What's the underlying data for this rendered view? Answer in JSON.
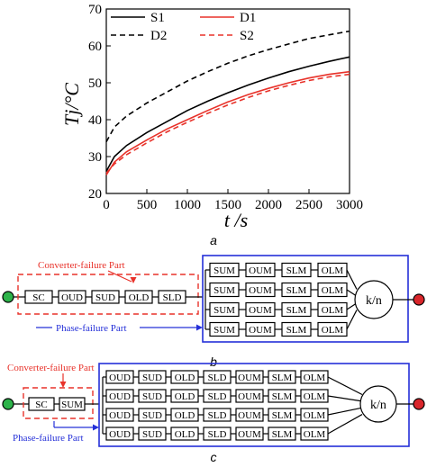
{
  "panel_a": {
    "caption": "a",
    "chart_data": {
      "type": "line",
      "xlabel": "t /s",
      "ylabel": "Tj/°C",
      "xlim": [
        0,
        3000
      ],
      "ylim": [
        20,
        70
      ],
      "xticks": [
        0,
        500,
        1000,
        1500,
        2000,
        2500,
        3000
      ],
      "yticks": [
        20,
        30,
        40,
        50,
        60,
        70
      ],
      "x": [
        0,
        100,
        250,
        500,
        750,
        1000,
        1250,
        1500,
        1750,
        2000,
        2250,
        2500,
        2750,
        3000
      ],
      "series": [
        {
          "name": "S1",
          "color": "#000000",
          "dash": "solid",
          "values": [
            26,
            30,
            33,
            36.5,
            39.5,
            42.5,
            45,
            47.3,
            49.4,
            51.3,
            53,
            54.5,
            55.8,
            57
          ]
        },
        {
          "name": "D1",
          "color": "#e8322a",
          "dash": "solid",
          "values": [
            25,
            28.5,
            31.3,
            34.5,
            37.5,
            40,
            42.5,
            44.8,
            46.8,
            48.5,
            50,
            51.3,
            52.3,
            53
          ]
        },
        {
          "name": "D2",
          "color": "#000000",
          "dash": "dashed",
          "values": [
            34,
            38,
            41,
            44.5,
            47.5,
            50.5,
            53,
            55.3,
            57.3,
            59,
            60.5,
            62,
            63,
            64
          ]
        },
        {
          "name": "S2",
          "color": "#e8322a",
          "dash": "dashed",
          "values": [
            25.5,
            28,
            30.5,
            33.7,
            36.7,
            39.3,
            41.7,
            44,
            46,
            47.8,
            49.3,
            50.6,
            51.6,
            52.3
          ]
        }
      ],
      "legend": "top, two columns"
    }
  },
  "panel_b": {
    "caption": "b",
    "converter_label": "Converter-failure Part",
    "phase_label": "Phase-failure Part",
    "series_blocks": [
      "SC",
      "OUD",
      "SUD",
      "OLD",
      "SLD"
    ],
    "rows": [
      [
        "SUM",
        "OUM",
        "SLM",
        "OLM"
      ],
      [
        "SUM",
        "OUM",
        "SLM",
        "OLM"
      ],
      [
        "SUM",
        "OUM",
        "SLM",
        "OLM"
      ],
      [
        "SUM",
        "OUM",
        "SLM",
        "OLM"
      ]
    ],
    "vote": "k/n"
  },
  "panel_c": {
    "caption": "c",
    "converter_label": "Converter-failure Part",
    "phase_label": "Phase-failure Part",
    "series_blocks": [
      "SC",
      "SUM"
    ],
    "rows": [
      [
        "OUD",
        "SUD",
        "OLD",
        "SLD",
        "OUM",
        "SLM",
        "OLM"
      ],
      [
        "OUD",
        "SUD",
        "OLD",
        "SLD",
        "OUM",
        "SLM",
        "OLM"
      ],
      [
        "OUD",
        "SUD",
        "OLD",
        "SLD",
        "OUM",
        "SLM",
        "OLM"
      ],
      [
        "OUD",
        "SUD",
        "OLD",
        "SLD",
        "OUM",
        "SLM",
        "OLM"
      ]
    ],
    "vote": "k/n"
  },
  "colors": {
    "red": "#e8322a",
    "blue": "#2530d8",
    "start_node": "#2db34a",
    "end_node": "#d9262b"
  }
}
